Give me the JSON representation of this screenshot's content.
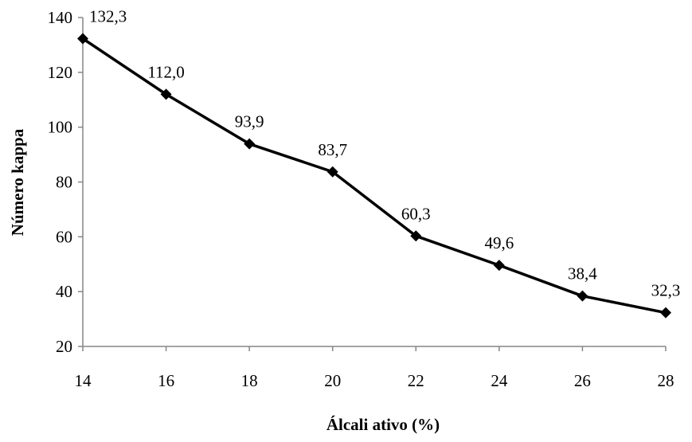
{
  "chart_data": {
    "type": "line",
    "x": [
      14,
      16,
      18,
      20,
      22,
      24,
      26,
      28
    ],
    "series": [
      {
        "values": [
          132.3,
          112.0,
          93.9,
          83.7,
          60.3,
          49.6,
          38.4,
          32.3
        ]
      }
    ],
    "data_labels": [
      "132,3",
      "112,0",
      "93,9",
      "83,7",
      "60,3",
      "49,6",
      "38,4",
      "32,3"
    ],
    "xlabel": "Álcali ativo (%)",
    "ylabel": "Número kappa",
    "xlim": [
      14,
      28
    ],
    "ylim": [
      20,
      140
    ],
    "x_ticks": [
      "14",
      "16",
      "18",
      "20",
      "22",
      "24",
      "26",
      "28"
    ],
    "y_ticks": [
      "20",
      "40",
      "60",
      "80",
      "100",
      "120",
      "140"
    ],
    "grid": false,
    "legend": "none",
    "marker": "diamond",
    "colors": {
      "series": "#000000",
      "axis": "#868686"
    }
  }
}
